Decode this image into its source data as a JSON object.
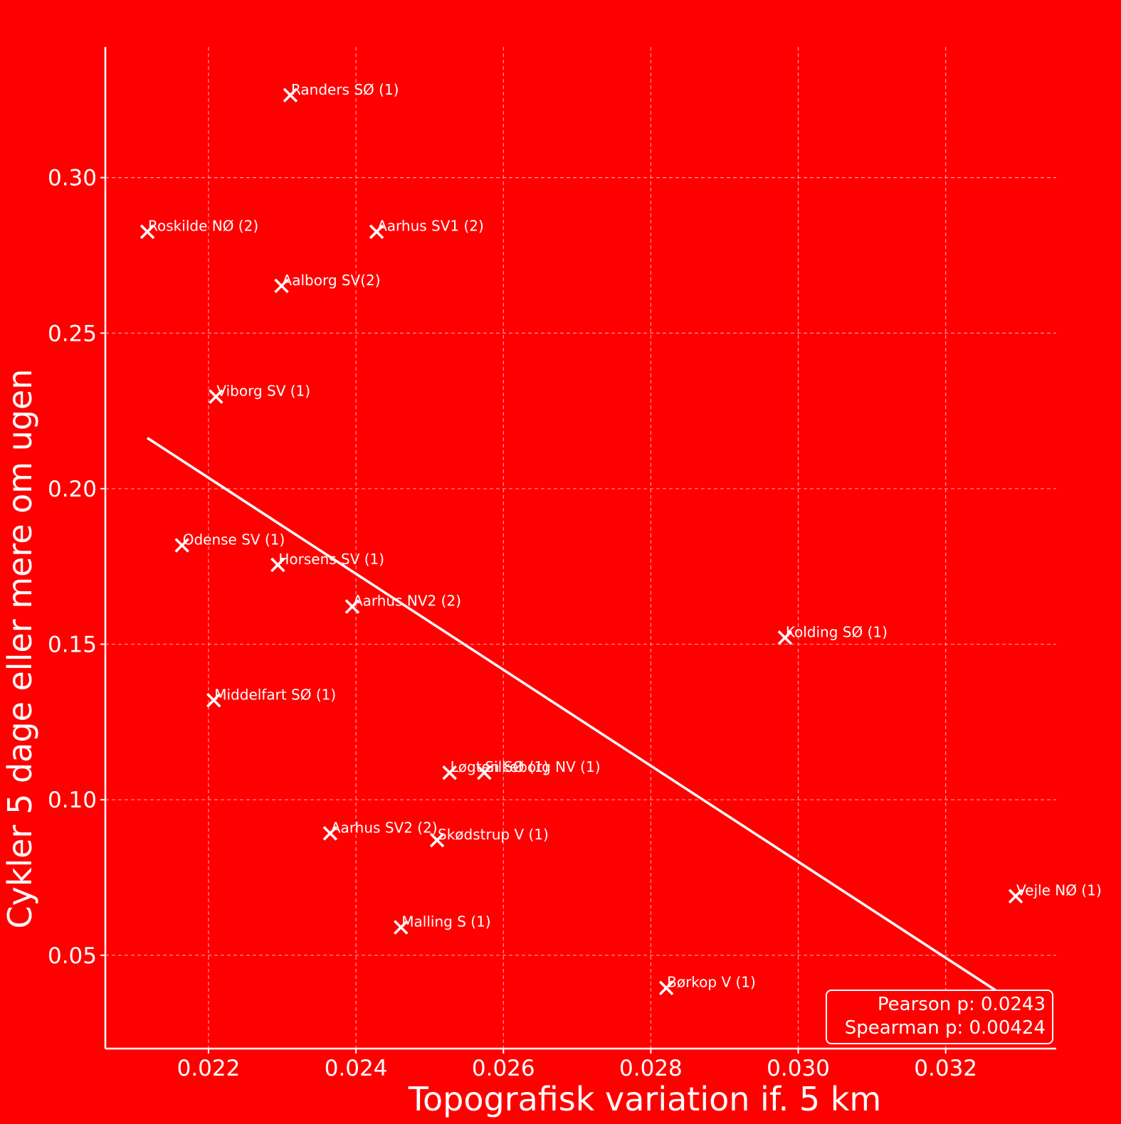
{
  "chart_data": {
    "type": "scatter",
    "title": "",
    "xlabel": "Topografisk variation if. 5 km",
    "ylabel": "Cykler 5 dage eller mere om ugen",
    "xlim": [
      0.0206,
      0.0335
    ],
    "ylim": [
      0.02,
      0.342
    ],
    "xticks": [
      0.022,
      0.024,
      0.026,
      0.028,
      0.03,
      0.032
    ],
    "xtick_labels": [
      "0.022",
      "0.024",
      "0.026",
      "0.028",
      "0.030",
      "0.032"
    ],
    "yticks": [
      0.05,
      0.1,
      0.15,
      0.2,
      0.25,
      0.3
    ],
    "ytick_labels": [
      "0.05",
      "0.10",
      "0.15",
      "0.20",
      "0.25",
      "0.30"
    ],
    "grid": true,
    "points": [
      {
        "label": "Randers SØ (1)",
        "x": 0.02311,
        "y": 0.3265
      },
      {
        "label": "Roskilde NØ (2)",
        "x": 0.02117,
        "y": 0.2826
      },
      {
        "label": "Aarhus SV1 (2)",
        "x": 0.02428,
        "y": 0.2826
      },
      {
        "label": "Aalborg SV(2)",
        "x": 0.02299,
        "y": 0.2652
      },
      {
        "label": "Viborg SV (1)",
        "x": 0.0221,
        "y": 0.2296
      },
      {
        "label": "Odense SV (1)",
        "x": 0.02164,
        "y": 0.1818
      },
      {
        "label": "Horsens SV (1)",
        "x": 0.02294,
        "y": 0.1755
      },
      {
        "label": "Aarhus NV2 (2)",
        "x": 0.02395,
        "y": 0.1621
      },
      {
        "label": "Kolding SØ (1)",
        "x": 0.02982,
        "y": 0.1521
      },
      {
        "label": "Middelfart SØ (1)",
        "x": 0.02207,
        "y": 0.132
      },
      {
        "label": "Løgten SØ (1)",
        "x": 0.02527,
        "y": 0.1087
      },
      {
        "label": "Silkeborg NV (1)",
        "x": 0.02574,
        "y": 0.1087
      },
      {
        "label": "Aarhus SV2 (2)",
        "x": 0.02365,
        "y": 0.0892
      },
      {
        "label": "Skødstrup V (1)",
        "x": 0.0251,
        "y": 0.087
      },
      {
        "label": "Vejle NØ (1)",
        "x": 0.03295,
        "y": 0.069
      },
      {
        "label": "Malling S (1)",
        "x": 0.02461,
        "y": 0.059
      },
      {
        "label": "Børkop V (1)",
        "x": 0.02821,
        "y": 0.0395
      }
    ],
    "trendline": {
      "x": [
        0.02117,
        0.0327
      ],
      "y": [
        0.2163,
        0.0384
      ]
    },
    "legend": "bottom-right",
    "stats": {
      "pearson": "Pearson p: 0.0243",
      "spearman": "Spearman p: 0.00424"
    },
    "colors": {
      "background": "#ff0000",
      "foreground": "#ffffff",
      "grid": "#ff9999"
    }
  }
}
